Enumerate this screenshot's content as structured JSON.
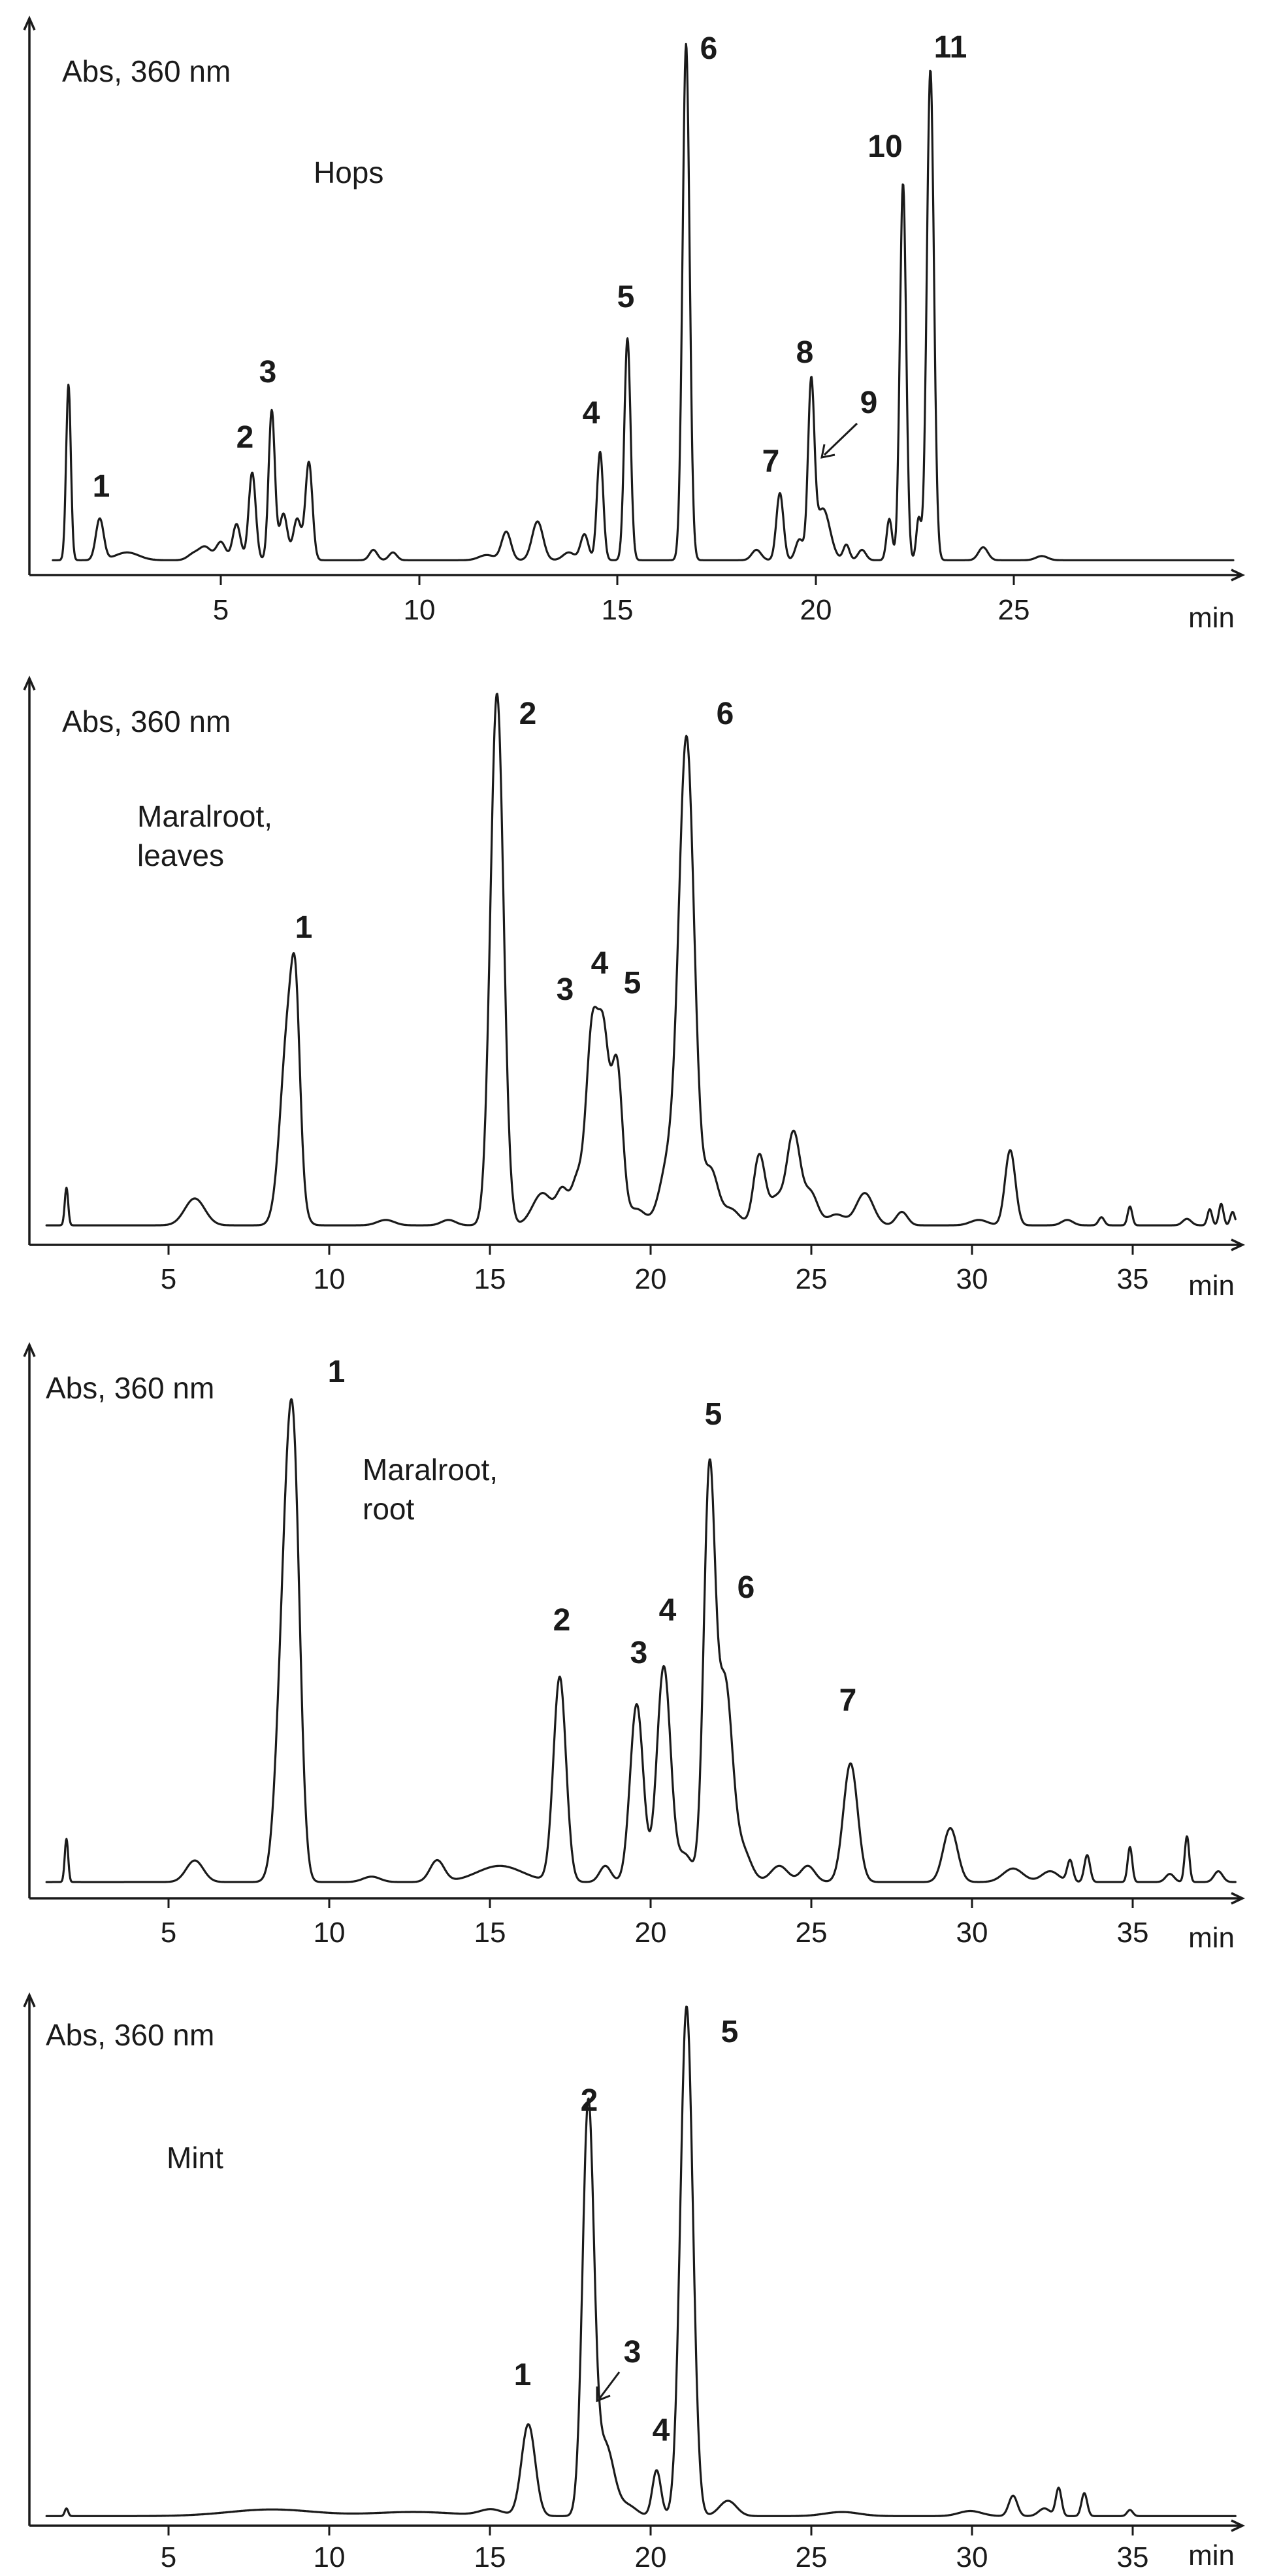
{
  "chart_data": [
    {
      "type": "line",
      "title": "",
      "ylabel": "Abs, 360 nm",
      "xlabel": "min",
      "sample_label": [
        "Hops"
      ],
      "xlim": [
        0,
        31
      ],
      "ylim": [
        0,
        100
      ],
      "xticks": [
        5,
        10,
        15,
        20,
        25
      ],
      "grid": false,
      "peaks": [
        {
          "t": 1.0,
          "h": 34,
          "w": 0.06
        },
        {
          "t": 1.8,
          "h": 8,
          "w": 0.1
        },
        {
          "t": 2.5,
          "h": 1.5,
          "w": 0.3
        },
        {
          "t": 4.2,
          "h": 1.2,
          "w": 0.15
        },
        {
          "t": 4.5,
          "h": 2.5,
          "w": 0.15
        },
        {
          "t": 4.9,
          "h": 3.5,
          "w": 0.12
        },
        {
          "t": 5.3,
          "h": 7,
          "w": 0.1
        },
        {
          "t": 5.7,
          "h": 17,
          "w": 0.09
        },
        {
          "t": 6.2,
          "h": 29,
          "w": 0.08
        },
        {
          "t": 6.5,
          "h": 9,
          "w": 0.1
        },
        {
          "t": 6.85,
          "h": 8,
          "w": 0.1
        },
        {
          "t": 7.15,
          "h": 19,
          "w": 0.09
        },
        {
          "t": 8.8,
          "h": 2,
          "w": 0.1
        },
        {
          "t": 9.3,
          "h": 1.5,
          "w": 0.1
        },
        {
          "t": 11.7,
          "h": 1,
          "w": 0.2
        },
        {
          "t": 12.2,
          "h": 5.5,
          "w": 0.12
        },
        {
          "t": 13.0,
          "h": 7.5,
          "w": 0.14
        },
        {
          "t": 13.8,
          "h": 1.5,
          "w": 0.15
        },
        {
          "t": 14.2,
          "h": 5,
          "w": 0.1
        },
        {
          "t": 14.6,
          "h": 21,
          "w": 0.08
        },
        {
          "t": 15.3,
          "h": 43,
          "w": 0.08
        },
        {
          "t": 16.8,
          "h": 100,
          "w": 0.09
        },
        {
          "t": 18.6,
          "h": 2,
          "w": 0.12
        },
        {
          "t": 19.2,
          "h": 13,
          "w": 0.09
        },
        {
          "t": 19.7,
          "h": 4,
          "w": 0.1
        },
        {
          "t": 20.0,
          "h": 33,
          "w": 0.08
        },
        {
          "t": 20.3,
          "h": 10,
          "w": 0.18
        },
        {
          "t": 20.9,
          "h": 3,
          "w": 0.08
        },
        {
          "t": 21.3,
          "h": 2,
          "w": 0.1
        },
        {
          "t": 22.0,
          "h": 8,
          "w": 0.07
        },
        {
          "t": 22.35,
          "h": 73,
          "w": 0.08
        },
        {
          "t": 22.75,
          "h": 8,
          "w": 0.06
        },
        {
          "t": 23.05,
          "h": 95,
          "w": 0.09
        },
        {
          "t": 24.4,
          "h": 2.5,
          "w": 0.12
        },
        {
          "t": 25.9,
          "h": 0.8,
          "w": 0.15
        }
      ],
      "peak_labels": [
        {
          "label": "1",
          "t": 1.8
        },
        {
          "label": "2",
          "t": 5.7
        },
        {
          "label": "3",
          "t": 6.2
        },
        {
          "label": "4",
          "t": 14.6
        },
        {
          "label": "5",
          "t": 15.3
        },
        {
          "label": "6",
          "t": 16.8
        },
        {
          "label": "7",
          "t": 19.2
        },
        {
          "label": "8",
          "t": 20.0
        },
        {
          "label": "9",
          "t": 20.3
        },
        {
          "label": "10",
          "t": 22.35
        },
        {
          "label": "11",
          "t": 23.05
        }
      ]
    },
    {
      "type": "line",
      "title": "",
      "ylabel": "Abs, 360 nm",
      "xlabel": "min",
      "sample_label": [
        "Maralroot,",
        "leaves"
      ],
      "xlim": [
        0,
        42.5
      ],
      "ylim": [
        0,
        100
      ],
      "xticks": [
        5,
        10,
        15,
        20,
        25,
        30,
        35
      ],
      "grid": false,
      "peaks": [
        {
          "t": 1.3,
          "h": 7,
          "w": 0.06
        },
        {
          "t": 5.8,
          "h": 5,
          "w": 0.35
        },
        {
          "t": 9.1,
          "h": 38,
          "w": 0.28
        },
        {
          "t": 9.35,
          "h": 22,
          "w": 0.15
        },
        {
          "t": 12.5,
          "h": 1,
          "w": 0.3
        },
        {
          "t": 14.7,
          "h": 1,
          "w": 0.25
        },
        {
          "t": 16.4,
          "h": 99,
          "w": 0.23
        },
        {
          "t": 18.0,
          "h": 6,
          "w": 0.35
        },
        {
          "t": 18.7,
          "h": 6,
          "w": 0.2
        },
        {
          "t": 19.2,
          "h": 8,
          "w": 0.2
        },
        {
          "t": 19.75,
          "h": 37,
          "w": 0.22
        },
        {
          "t": 20.15,
          "h": 29,
          "w": 0.18
        },
        {
          "t": 20.6,
          "h": 30,
          "w": 0.2
        },
        {
          "t": 21.3,
          "h": 3,
          "w": 0.3
        },
        {
          "t": 22.4,
          "h": 11,
          "w": 0.3
        },
        {
          "t": 23.05,
          "h": 90,
          "w": 0.27
        },
        {
          "t": 23.9,
          "h": 10,
          "w": 0.25
        },
        {
          "t": 24.6,
          "h": 3,
          "w": 0.3
        },
        {
          "t": 25.6,
          "h": 13,
          "w": 0.2
        },
        {
          "t": 26.2,
          "h": 5,
          "w": 0.25
        },
        {
          "t": 26.8,
          "h": 17,
          "w": 0.23
        },
        {
          "t": 27.4,
          "h": 6,
          "w": 0.25
        },
        {
          "t": 28.3,
          "h": 2,
          "w": 0.3
        },
        {
          "t": 29.3,
          "h": 6,
          "w": 0.3
        },
        {
          "t": 30.6,
          "h": 2.5,
          "w": 0.2
        },
        {
          "t": 33.3,
          "h": 1,
          "w": 0.3
        },
        {
          "t": 34.4,
          "h": 14,
          "w": 0.18
        },
        {
          "t": 36.4,
          "h": 1,
          "w": 0.2
        },
        {
          "t": 37.6,
          "h": 1.5,
          "w": 0.1
        },
        {
          "t": 38.6,
          "h": 3.5,
          "w": 0.08
        },
        {
          "t": 40.6,
          "h": 1.2,
          "w": 0.15
        },
        {
          "t": 41.4,
          "h": 3,
          "w": 0.08
        },
        {
          "t": 41.8,
          "h": 4,
          "w": 0.08
        },
        {
          "t": 42.2,
          "h": 2.5,
          "w": 0.08
        }
      ],
      "peak_labels": [
        {
          "label": "1",
          "t": 9.1
        },
        {
          "label": "2",
          "t": 16.4
        },
        {
          "label": "3",
          "t": 19.75
        },
        {
          "label": "4",
          "t": 20.15
        },
        {
          "label": "5",
          "t": 20.6
        },
        {
          "label": "6",
          "t": 23.05
        }
      ]
    },
    {
      "type": "line",
      "title": "",
      "ylabel": "Abs, 360 nm",
      "xlabel": "min",
      "sample_label": [
        "Maralroot,",
        "root"
      ],
      "xlim": [
        0,
        42.5
      ],
      "ylim": [
        0,
        100
      ],
      "xticks": [
        5,
        10,
        15,
        20,
        25,
        30,
        35
      ],
      "grid": false,
      "peaks": [
        {
          "t": 1.3,
          "h": 8,
          "w": 0.06
        },
        {
          "t": 5.8,
          "h": 4,
          "w": 0.3
        },
        {
          "t": 9.0,
          "h": 55,
          "w": 0.28
        },
        {
          "t": 9.3,
          "h": 52,
          "w": 0.22
        },
        {
          "t": 12.0,
          "h": 1,
          "w": 0.3
        },
        {
          "t": 14.3,
          "h": 4,
          "w": 0.25
        },
        {
          "t": 16.5,
          "h": 3,
          "w": 0.8
        },
        {
          "t": 18.6,
          "h": 38,
          "w": 0.22
        },
        {
          "t": 20.2,
          "h": 3,
          "w": 0.2
        },
        {
          "t": 21.3,
          "h": 33,
          "w": 0.23
        },
        {
          "t": 22.25,
          "h": 40,
          "w": 0.24
        },
        {
          "t": 23.0,
          "h": 5,
          "w": 0.25
        },
        {
          "t": 23.85,
          "h": 75,
          "w": 0.2
        },
        {
          "t": 24.4,
          "h": 36,
          "w": 0.25
        },
        {
          "t": 25.0,
          "h": 6,
          "w": 0.3
        },
        {
          "t": 26.3,
          "h": 3,
          "w": 0.3
        },
        {
          "t": 27.3,
          "h": 3,
          "w": 0.25
        },
        {
          "t": 28.8,
          "h": 22,
          "w": 0.25
        },
        {
          "t": 32.3,
          "h": 10,
          "w": 0.25
        },
        {
          "t": 34.5,
          "h": 2.5,
          "w": 0.35
        },
        {
          "t": 35.8,
          "h": 2,
          "w": 0.3
        },
        {
          "t": 36.5,
          "h": 4,
          "w": 0.1
        },
        {
          "t": 37.1,
          "h": 5,
          "w": 0.1
        },
        {
          "t": 38.6,
          "h": 6.5,
          "w": 0.08
        },
        {
          "t": 40.0,
          "h": 1.5,
          "w": 0.15
        },
        {
          "t": 40.6,
          "h": 8.5,
          "w": 0.08
        },
        {
          "t": 41.7,
          "h": 2,
          "w": 0.15
        }
      ],
      "peak_labels": [
        {
          "label": "1",
          "t": 9.15
        },
        {
          "label": "2",
          "t": 18.6
        },
        {
          "label": "3",
          "t": 21.3
        },
        {
          "label": "4",
          "t": 22.25
        },
        {
          "label": "5",
          "t": 23.85
        },
        {
          "label": "6",
          "t": 24.4
        },
        {
          "label": "7",
          "t": 28.8
        }
      ]
    },
    {
      "type": "line",
      "title": "",
      "ylabel": "Abs, 360 nm",
      "xlabel": "min",
      "sample_label": [
        "Mint"
      ],
      "xlim": [
        0,
        42.5
      ],
      "ylim": [
        0,
        100
      ],
      "xticks": [
        5,
        10,
        15,
        20,
        25,
        30,
        35
      ],
      "grid": false,
      "peaks": [
        {
          "t": 1.3,
          "h": 1.5,
          "w": 0.06
        },
        {
          "t": 8.5,
          "h": 1.3,
          "w": 1.5
        },
        {
          "t": 13.5,
          "h": 0.8,
          "w": 1.5
        },
        {
          "t": 16.2,
          "h": 1.2,
          "w": 0.4
        },
        {
          "t": 17.5,
          "h": 18,
          "w": 0.24
        },
        {
          "t": 19.6,
          "h": 80,
          "w": 0.2
        },
        {
          "t": 20.2,
          "h": 14,
          "w": 0.3
        },
        {
          "t": 21.0,
          "h": 2,
          "w": 0.3
        },
        {
          "t": 22.0,
          "h": 9,
          "w": 0.15
        },
        {
          "t": 23.05,
          "h": 100,
          "w": 0.22
        },
        {
          "t": 24.5,
          "h": 3,
          "w": 0.3
        },
        {
          "t": 28.5,
          "h": 0.8,
          "w": 0.6
        },
        {
          "t": 33.0,
          "h": 1,
          "w": 0.4
        },
        {
          "t": 34.5,
          "h": 4,
          "w": 0.15
        },
        {
          "t": 35.6,
          "h": 1.5,
          "w": 0.2
        },
        {
          "t": 36.1,
          "h": 5.5,
          "w": 0.1
        },
        {
          "t": 37.0,
          "h": 4.5,
          "w": 0.1
        },
        {
          "t": 38.6,
          "h": 1.2,
          "w": 0.1
        }
      ],
      "peak_labels": [
        {
          "label": "1",
          "t": 17.5
        },
        {
          "label": "2",
          "t": 19.6
        },
        {
          "label": "3",
          "t": 20.2
        },
        {
          "label": "4",
          "t": 22.0
        },
        {
          "label": "5",
          "t": 23.05
        }
      ]
    }
  ]
}
